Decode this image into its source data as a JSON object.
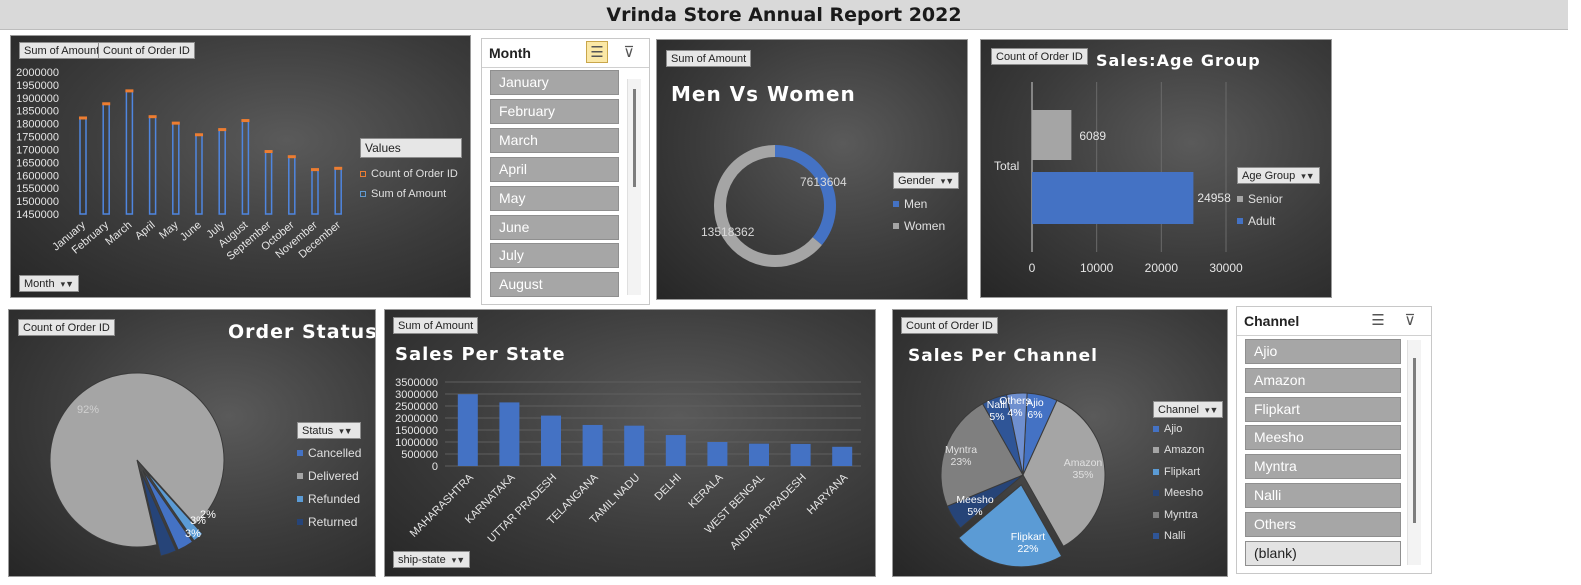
{
  "report_title": "Vrinda Store Annual Report 2022",
  "colors": {
    "blue": "#4472c4",
    "gray": "#a5a5a5",
    "orange": "#ed7d31",
    "dark_blue": "#264478",
    "light_blue": "#5b9bd5"
  },
  "monthly": {
    "field_buttons": {
      "amount": "Sum of Amount",
      "orders": "Count of Order ID",
      "month": "Month"
    },
    "legend": {
      "title": "Values",
      "items": [
        "Count of Order ID",
        "Sum of Amount"
      ]
    },
    "chart_data": {
      "type": "bar",
      "categories": [
        "January",
        "February",
        "March",
        "April",
        "May",
        "June",
        "July",
        "August",
        "September",
        "October",
        "November",
        "December"
      ],
      "series": [
        {
          "name": "Sum of Amount",
          "values": [
            1820000,
            1875000,
            1925000,
            1825000,
            1800000,
            1755000,
            1775000,
            1810000,
            1690000,
            1670000,
            1620000,
            1625000
          ]
        }
      ],
      "yticks": [
        "2000000",
        "1950000",
        "1900000",
        "1850000",
        "1800000",
        "1750000",
        "1700000",
        "1650000",
        "1600000",
        "1550000",
        "1500000",
        "1450000"
      ],
      "ylim": [
        1450000,
        2000000
      ]
    }
  },
  "month_slicer": {
    "header": "Month",
    "items": [
      "January",
      "February",
      "March",
      "April",
      "May",
      "June",
      "July",
      "August"
    ]
  },
  "gender": {
    "field_button": "Sum of Amount",
    "title": "Men Vs Women",
    "legend_title": "Gender",
    "chart_data": {
      "type": "pie",
      "labels": [
        "Men",
        "Women"
      ],
      "values": [
        7613604,
        13518362
      ],
      "data_labels": [
        "7613604",
        "13518362"
      ]
    }
  },
  "age": {
    "field_button": "Count of Order ID",
    "title": "Sales:Age Group",
    "category_label": "Total",
    "legend_title": "Age Group",
    "chart_data": {
      "type": "bar",
      "categories": [
        "Total"
      ],
      "series": [
        {
          "name": "Senior",
          "values": [
            6089
          ]
        },
        {
          "name": "Adult",
          "values": [
            24958
          ]
        }
      ],
      "data_labels": [
        "6089",
        "24958"
      ],
      "xticks": [
        "0",
        "10000",
        "20000",
        "30000"
      ],
      "xlim": [
        0,
        30000
      ]
    }
  },
  "status": {
    "field_button": "Count of Order ID",
    "title": "Order Status",
    "legend_title": "Status",
    "chart_data": {
      "type": "pie",
      "labels": [
        "Cancelled",
        "Delivered",
        "Refunded",
        "Returned"
      ],
      "values": [
        3,
        92,
        2,
        3
      ],
      "data_labels": [
        "3%",
        "92%",
        "2%",
        "3%"
      ]
    }
  },
  "state": {
    "field_button": "Sum of Amount",
    "title": "Sales Per State",
    "axis_button": "ship-state",
    "chart_data": {
      "type": "bar",
      "categories": [
        "MAHARASHTRA",
        "KARNATAKA",
        "UTTAR PRADESH",
        "TELANGANA",
        "TAMIL NADU",
        "DELHI",
        "KERALA",
        "WEST BENGAL",
        "ANDHRA PRADESH",
        "HARYANA"
      ],
      "values": [
        2990000,
        2650000,
        2100000,
        1710000,
        1680000,
        1290000,
        1000000,
        930000,
        920000,
        800000
      ],
      "yticks": [
        "3500000",
        "3000000",
        "2500000",
        "2000000",
        "1500000",
        "1000000",
        "500000",
        "0"
      ],
      "ylim": [
        0,
        3500000
      ]
    }
  },
  "channel": {
    "field_button": "Count of Order ID",
    "title": "Sales Per Channel",
    "legend_title": "Channel",
    "legend_items": [
      "Ajio",
      "Amazon",
      "Flipkart",
      "Meesho",
      "Myntra",
      "Nalli"
    ],
    "chart_data": {
      "type": "pie",
      "labels": [
        "Ajio",
        "Amazon",
        "Flipkart",
        "Meesho",
        "Myntra",
        "Nalli",
        "Others"
      ],
      "values": [
        6,
        35,
        22,
        5,
        23,
        5,
        4
      ],
      "data_labels": [
        "Ajio\n6%",
        "Amazon\n35%",
        "Flipkart\n22%",
        "Meesho\n5%",
        "Myntra\n23%",
        "Nalli\n5%",
        "Others\n4%"
      ]
    }
  },
  "channel_slicer": {
    "header": "Channel",
    "items": [
      "Ajio",
      "Amazon",
      "Flipkart",
      "Meesho",
      "Myntra",
      "Nalli",
      "Others",
      "(blank)"
    ]
  }
}
